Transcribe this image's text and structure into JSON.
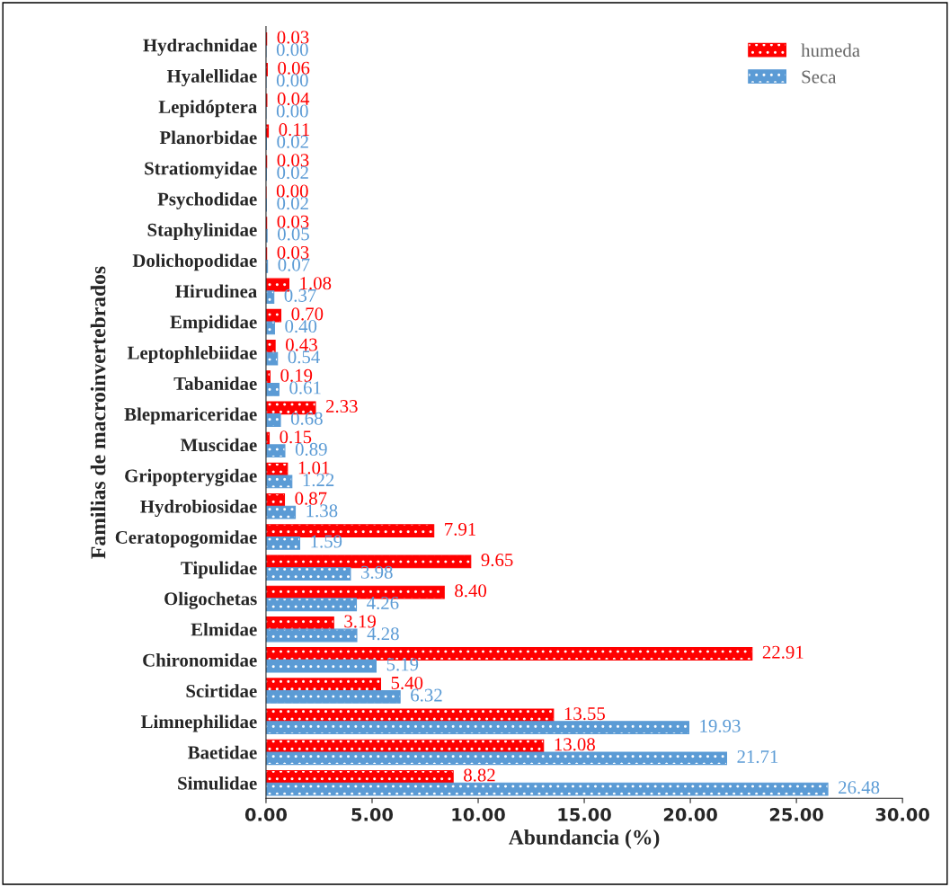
{
  "chart_data": {
    "type": "bar",
    "orientation": "horizontal",
    "xlabel": "Abundancia (%)",
    "ylabel": "Familias de macroinvertebrados",
    "categories": [
      "Hydrachnidae",
      "Hyalellidae",
      "Lepidóptera",
      "Planorbidae",
      "Stratiomyidae",
      "Psychodidae",
      "Staphylinidae",
      "Dolichopodidae",
      "Hirudinea",
      "Empididae",
      "Leptophlebiidae",
      "Tabanidae",
      "Blepmariceridae",
      "Muscidae",
      "Gripopterygidae",
      "Hydrobiosidae",
      "Ceratopogomidae",
      "Tipulidae",
      "Oligochetas",
      "Elmidae",
      "Chironomidae",
      "Scirtidae",
      "Limnephilidae",
      "Baetidae",
      "Simulidae"
    ],
    "series": [
      {
        "name": "humeda",
        "color": "#ff0000",
        "values": [
          0.03,
          0.06,
          0.04,
          0.11,
          0.03,
          0.0,
          0.03,
          0.03,
          1.08,
          0.7,
          0.43,
          0.19,
          2.33,
          0.15,
          1.01,
          0.87,
          7.91,
          9.65,
          8.4,
          3.19,
          22.91,
          5.4,
          13.55,
          13.08,
          8.82
        ],
        "value_labels": [
          "0.03",
          "0.06",
          "0.04",
          "0.11",
          "0.03",
          "0.00",
          "0.03",
          "0.03",
          "1.08",
          "0.70",
          "0.43",
          "0.19",
          "2.33",
          "0.15",
          "1.01",
          "0.87",
          "7.91",
          "9.65",
          "8.40",
          "3.19",
          "22.91",
          "5.40",
          "13.55",
          "13.08",
          "8.82"
        ]
      },
      {
        "name": "Seca",
        "color": "#5b9bd5",
        "values": [
          0.0,
          0.0,
          0.0,
          0.02,
          0.02,
          0.02,
          0.05,
          0.07,
          0.37,
          0.4,
          0.54,
          0.61,
          0.68,
          0.89,
          1.22,
          1.38,
          1.59,
          3.98,
          4.26,
          4.28,
          5.19,
          6.32,
          19.93,
          21.71,
          26.48
        ],
        "value_labels": [
          "0.00",
          "0.00",
          "0.00",
          "0.02",
          "0.02",
          "0.02",
          "0.05",
          "0.07",
          "0.37",
          "0.40",
          "0.54",
          "0.61",
          "0.68",
          "0.89",
          "1.22",
          "1.38",
          "1.59",
          "3.98",
          "4.26",
          "4.28",
          "5.19",
          "6.32",
          "19.93",
          "21.71",
          "26.48"
        ]
      }
    ],
    "xlim": [
      0,
      30
    ],
    "xticks": [
      {
        "value": 0,
        "label": "0.00"
      },
      {
        "value": 5,
        "label": "5.00"
      },
      {
        "value": 10,
        "label": "10.00"
      },
      {
        "value": 15,
        "label": "15.00"
      },
      {
        "value": 20,
        "label": "20.00"
      },
      {
        "value": 25,
        "label": "25.00"
      },
      {
        "value": 30,
        "label": "30.00"
      }
    ],
    "legend": "top right",
    "grid": false
  }
}
